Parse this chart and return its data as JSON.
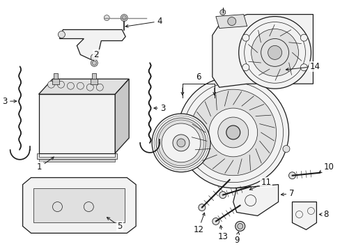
{
  "background_color": "#ffffff",
  "line_color": "#1a1a1a",
  "label_color": "#111111",
  "fig_width": 4.89,
  "fig_height": 3.6,
  "dpi": 100
}
